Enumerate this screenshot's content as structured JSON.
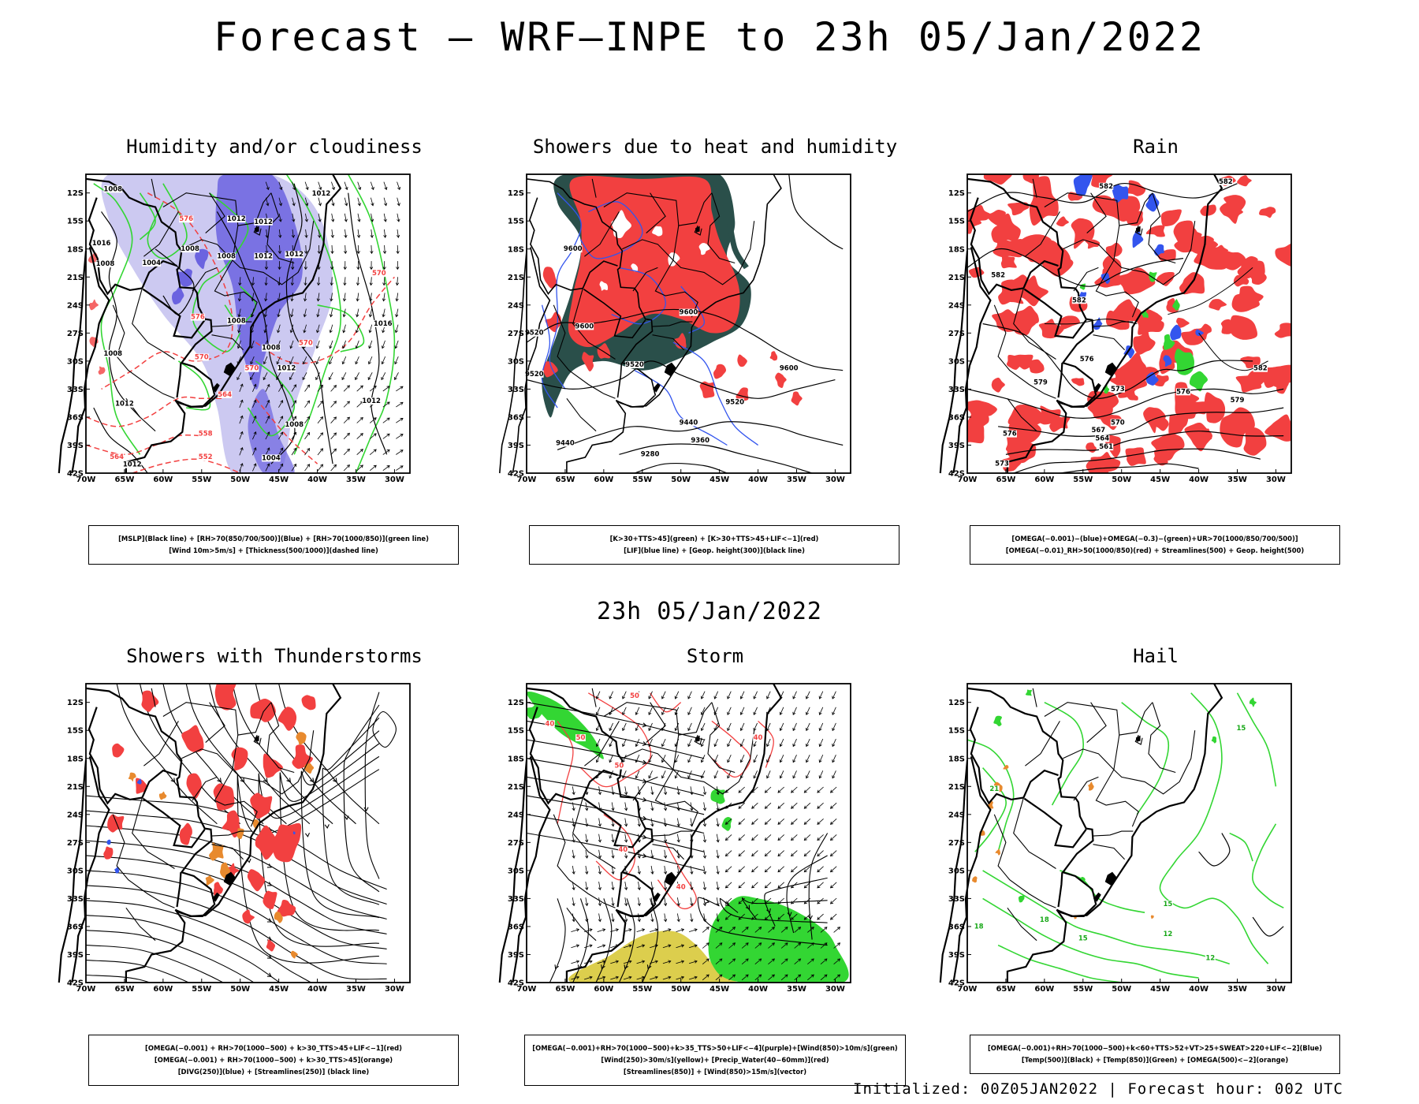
{
  "page": {
    "title": "Forecast — WRF—INPE to 23h 05/Jan/2022",
    "row2_title": "23h 05/Jan/2022",
    "footer": "Initialized: 00Z05JAN2022 | Forecast hour: 002 UTC"
  },
  "axes": {
    "lon_labels": [
      "70W",
      "65W",
      "60W",
      "55W",
      "50W",
      "45W",
      "40W",
      "35W",
      "30W"
    ],
    "lat_labels": [
      "12S",
      "15S",
      "18S",
      "21S",
      "24S",
      "27S",
      "30S",
      "33S",
      "36S",
      "39S",
      "42S"
    ],
    "lon_range": [
      -70,
      -28
    ],
    "lat_range": [
      -10,
      -42
    ]
  },
  "colors": {
    "red": "#f24040",
    "green": "#33d633",
    "dark_teal": "#2a4f4a",
    "blue": "#3355ee",
    "light_purple": "#c3c0ee",
    "purple": "#6b63e0",
    "orange": "#e88a2e",
    "yellow": "#d8c93a",
    "black": "#000000"
  },
  "panels": [
    {
      "id": "humidity",
      "title": "Humidity and/or cloudiness",
      "caption": [
        "[MSLP](Black line) + [RH>70(850/700/500)](Blue) + [RH>70(1000/850)](green line)",
        "[Wind 10m>5m/s] + [Thickness(500/1000)](dashed line)"
      ],
      "contour_labels": [
        {
          "text": "1008",
          "lon": -66.5,
          "lat": -11.8,
          "color": "black"
        },
        {
          "text": "1012",
          "lon": -50.5,
          "lat": -15.0,
          "color": "black"
        },
        {
          "text": "1012",
          "lon": -47.0,
          "lat": -15.3,
          "color": "black"
        },
        {
          "text": "1012",
          "lon": -39.5,
          "lat": -12.3,
          "color": "black"
        },
        {
          "text": "1016",
          "lon": -68.0,
          "lat": -17.6,
          "color": "black"
        },
        {
          "text": "1008",
          "lon": -67.5,
          "lat": -19.8,
          "color": "black"
        },
        {
          "text": "1004",
          "lon": -61.5,
          "lat": -19.7,
          "color": "black"
        },
        {
          "text": "1008",
          "lon": -56.5,
          "lat": -18.2,
          "color": "black"
        },
        {
          "text": "1008",
          "lon": -51.8,
          "lat": -19.0,
          "color": "black"
        },
        {
          "text": "1012",
          "lon": -47.0,
          "lat": -19.0,
          "color": "black"
        },
        {
          "text": "1012",
          "lon": -43.0,
          "lat": -18.8,
          "color": "black"
        },
        {
          "text": "1008",
          "lon": -50.5,
          "lat": -25.9,
          "color": "black"
        },
        {
          "text": "1008",
          "lon": -46.0,
          "lat": -28.8,
          "color": "black"
        },
        {
          "text": "1012",
          "lon": -44.0,
          "lat": -31.0,
          "color": "black"
        },
        {
          "text": "1008",
          "lon": -66.5,
          "lat": -29.4,
          "color": "black"
        },
        {
          "text": "1012",
          "lon": -65.0,
          "lat": -34.8,
          "color": "black"
        },
        {
          "text": "1012",
          "lon": -33.0,
          "lat": -34.5,
          "color": "black"
        },
        {
          "text": "1008",
          "lon": -43.0,
          "lat": -37.0,
          "color": "black"
        },
        {
          "text": "1004",
          "lon": -46.0,
          "lat": -40.6,
          "color": "black"
        },
        {
          "text": "1012",
          "lon": -64.0,
          "lat": -41.3,
          "color": "black"
        },
        {
          "text": "1016",
          "lon": -31.5,
          "lat": -26.2,
          "color": "black"
        },
        {
          "text": "570",
          "lon": -55.0,
          "lat": -29.8,
          "color": "red"
        },
        {
          "text": "570",
          "lon": -48.5,
          "lat": -31.0,
          "color": "red"
        },
        {
          "text": "570",
          "lon": -41.5,
          "lat": -28.3,
          "color": "red"
        },
        {
          "text": "570",
          "lon": -32.0,
          "lat": -20.8,
          "color": "red"
        },
        {
          "text": "576",
          "lon": -55.5,
          "lat": -25.5,
          "color": "red"
        },
        {
          "text": "576",
          "lon": -57.0,
          "lat": -15.0,
          "color": "red"
        },
        {
          "text": "564",
          "lon": -52.0,
          "lat": -33.8,
          "color": "red"
        },
        {
          "text": "558",
          "lon": -54.5,
          "lat": -38.0,
          "color": "red"
        },
        {
          "text": "552",
          "lon": -54.5,
          "lat": -40.5,
          "color": "red"
        },
        {
          "text": "564",
          "lon": -66.0,
          "lat": -40.5,
          "color": "red"
        }
      ]
    },
    {
      "id": "showers_heat",
      "title": "Showers due to heat and humidity",
      "caption": [
        "[K>30+TTS>45](green) + [K>30+TTS>45+LIF<−1](red)",
        "[LIF](blue line) + [Geop. height(300)](black line)"
      ],
      "contour_labels": [
        {
          "text": "9600",
          "lon": -64.0,
          "lat": -18.2,
          "color": "black"
        },
        {
          "text": "9600",
          "lon": -62.5,
          "lat": -26.5,
          "color": "black"
        },
        {
          "text": "9600",
          "lon": -49.0,
          "lat": -25.0,
          "color": "black"
        },
        {
          "text": "9600",
          "lon": -36.0,
          "lat": -31.0,
          "color": "black"
        },
        {
          "text": "9520",
          "lon": -69.0,
          "lat": -27.2,
          "color": "black"
        },
        {
          "text": "9520",
          "lon": -69.0,
          "lat": -31.6,
          "color": "black"
        },
        {
          "text": "9520",
          "lon": -56.0,
          "lat": -30.6,
          "color": "black"
        },
        {
          "text": "9520",
          "lon": -43.0,
          "lat": -34.6,
          "color": "black"
        },
        {
          "text": "9440",
          "lon": -49.0,
          "lat": -36.8,
          "color": "black"
        },
        {
          "text": "9440",
          "lon": -65.0,
          "lat": -39.0,
          "color": "black"
        },
        {
          "text": "9360",
          "lon": -47.5,
          "lat": -38.7,
          "color": "black"
        },
        {
          "text": "9280",
          "lon": -54.0,
          "lat": -40.2,
          "color": "black"
        }
      ]
    },
    {
      "id": "rain",
      "title": "Rain",
      "caption": [
        "[OMEGA(−0.001)−(blue)+OMEGA(−0.3)−(green)+UR>70(1000/850/700/500)]",
        "[OMEGA(−0.01)_RH>50(1000/850)(red) + Streamlines(500) + Geop. height(500)"
      ],
      "contour_labels": [
        {
          "text": "582",
          "lon": -52.0,
          "lat": -11.5,
          "color": "black"
        },
        {
          "text": "582",
          "lon": -36.5,
          "lat": -11.0,
          "color": "black"
        },
        {
          "text": "582",
          "lon": -66.0,
          "lat": -21.0,
          "color": "black"
        },
        {
          "text": "582",
          "lon": -55.5,
          "lat": -23.7,
          "color": "black"
        },
        {
          "text": "582",
          "lon": -32.0,
          "lat": -31.0,
          "color": "black"
        },
        {
          "text": "579",
          "lon": -60.5,
          "lat": -32.5,
          "color": "black"
        },
        {
          "text": "579",
          "lon": -35.0,
          "lat": -34.4,
          "color": "black"
        },
        {
          "text": "576",
          "lon": -54.5,
          "lat": -30.0,
          "color": "black"
        },
        {
          "text": "576",
          "lon": -42.0,
          "lat": -33.5,
          "color": "black"
        },
        {
          "text": "576",
          "lon": -64.5,
          "lat": -38.0,
          "color": "black"
        },
        {
          "text": "573",
          "lon": -50.5,
          "lat": -33.2,
          "color": "black"
        },
        {
          "text": "573",
          "lon": -65.5,
          "lat": -41.2,
          "color": "black"
        },
        {
          "text": "570",
          "lon": -50.5,
          "lat": -36.8,
          "color": "black"
        },
        {
          "text": "567",
          "lon": -53.0,
          "lat": -37.6,
          "color": "black"
        },
        {
          "text": "564",
          "lon": -52.5,
          "lat": -38.5,
          "color": "black"
        },
        {
          "text": "561",
          "lon": -52.0,
          "lat": -39.4,
          "color": "black"
        }
      ]
    },
    {
      "id": "thunder",
      "title": "Showers with Thunderstorms",
      "caption": [
        "[OMEGA(−0.001) + RH>70(1000−500) + k>30_TTS>45+LIF<−1](red)",
        "[OMEGA(−0.001) + RH>70(1000−500) + k>30_TTS>45](orange)",
        "[DIVG(250)](blue) + [Streamlines(250)] (black line)"
      ],
      "contour_labels": []
    },
    {
      "id": "storm",
      "title": "Storm",
      "caption": [
        "[OMEGA(−0.001)+RH>70(1000−500)+k>35_TTS>50+LIF<−4](purple)+[Wind(850)>10m/s](green)",
        "[Wind(250)>30m/s](yellow)+ [Precip_Water(40−60mm)](red)",
        "[Streamlines(850)] + [Wind(850)>15m/s](vector)"
      ],
      "contour_labels": [
        {
          "text": "50",
          "lon": -56.0,
          "lat": -11.5,
          "color": "red"
        },
        {
          "text": "40",
          "lon": -67.0,
          "lat": -14.5,
          "color": "red"
        },
        {
          "text": "50",
          "lon": -63.0,
          "lat": -16.0,
          "color": "red"
        },
        {
          "text": "50",
          "lon": -58.0,
          "lat": -19.0,
          "color": "red"
        },
        {
          "text": "40",
          "lon": -40.0,
          "lat": -16.0,
          "color": "red"
        },
        {
          "text": "40",
          "lon": -57.5,
          "lat": -28.0,
          "color": "red"
        },
        {
          "text": "40",
          "lon": -50.0,
          "lat": -32.0,
          "color": "red"
        }
      ]
    },
    {
      "id": "hail",
      "title": "Hail",
      "caption": [
        "[OMEGA(−0.001)+RH>70(1000−500)+k<60+TTS>52+VT>25+SWEAT>220+LIF<−2](Blue)",
        "[Temp(500)](Black) + [Temp(850)](Green) + [OMEGA(500)<−2](orange)"
      ],
      "contour_labels": [
        {
          "text": "15",
          "lon": -34.5,
          "lat": -15.0,
          "color": "green"
        },
        {
          "text": "21",
          "lon": -66.5,
          "lat": -21.5,
          "color": "green"
        },
        {
          "text": "18",
          "lon": -60.0,
          "lat": -35.5,
          "color": "green"
        },
        {
          "text": "15",
          "lon": -55.0,
          "lat": -37.5,
          "color": "green"
        },
        {
          "text": "18",
          "lon": -68.5,
          "lat": -36.2,
          "color": "green"
        },
        {
          "text": "12",
          "lon": -44.0,
          "lat": -37.0,
          "color": "green"
        },
        {
          "text": "15",
          "lon": -44.0,
          "lat": -33.8,
          "color": "green"
        },
        {
          "text": "12",
          "lon": -38.5,
          "lat": -39.6,
          "color": "green"
        }
      ]
    }
  ]
}
